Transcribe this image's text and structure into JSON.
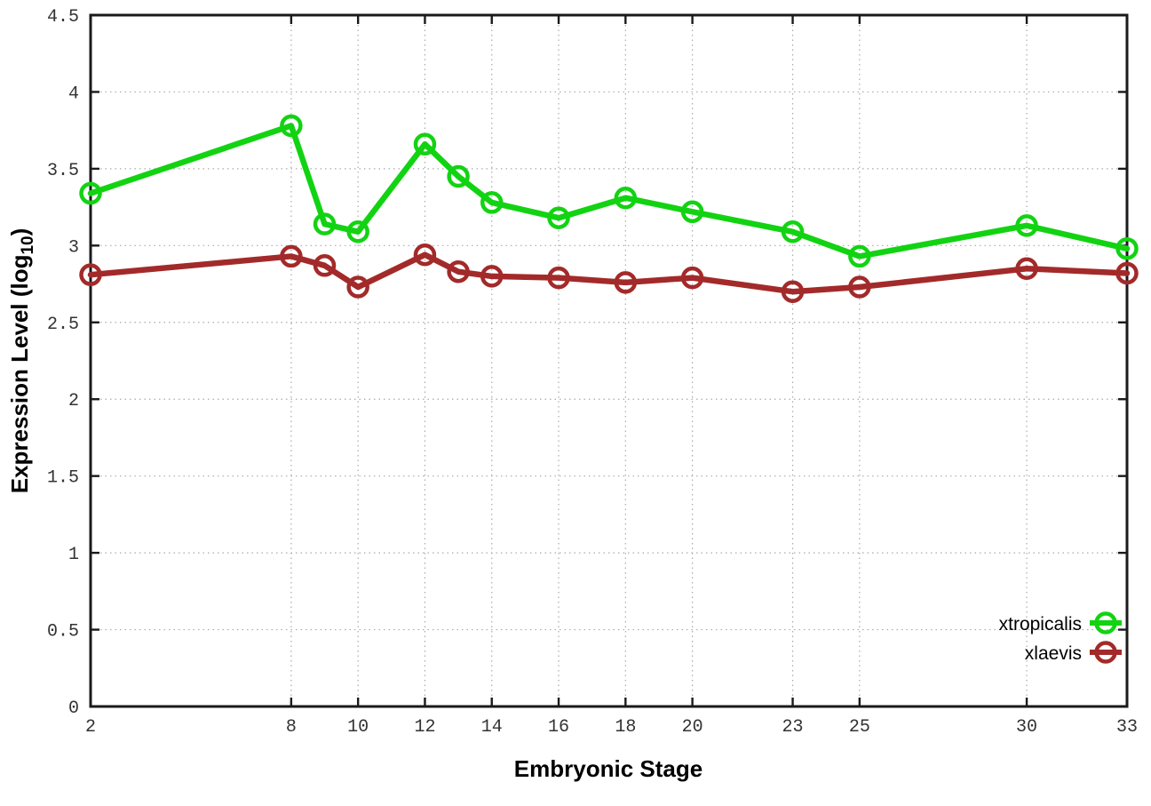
{
  "chart_data": {
    "type": "line",
    "title": "",
    "xlabel": "Embryonic Stage",
    "ylabel": "Expression Level (log10)",
    "ylabel_parts": {
      "main": "Expression Level (log",
      "sub": "10",
      "end": ")"
    },
    "xlim": [
      2,
      33
    ],
    "ylim": [
      0,
      4.5
    ],
    "grid": true,
    "legend_position": "inside-bottom-right",
    "x": [
      2,
      8,
      9,
      10,
      12,
      13,
      14,
      16,
      18,
      20,
      23,
      25,
      30,
      33
    ],
    "series": [
      {
        "name": "xtropicalis",
        "color": "#12d312",
        "values": [
          3.34,
          3.78,
          3.14,
          3.09,
          3.66,
          3.45,
          3.28,
          3.18,
          3.31,
          3.22,
          3.09,
          2.93,
          3.13,
          2.98
        ]
      },
      {
        "name": "xlaevis",
        "color": "#a32a2a",
        "values": [
          2.81,
          2.93,
          2.87,
          2.73,
          2.94,
          2.83,
          2.8,
          2.79,
          2.76,
          2.79,
          2.7,
          2.73,
          2.85,
          2.82
        ]
      }
    ],
    "xticks": {
      "values": [
        2,
        8,
        10,
        12,
        14,
        16,
        18,
        20,
        23,
        25,
        30,
        33
      ],
      "labels": [
        "2",
        "8",
        "10",
        "12",
        "14",
        "16",
        "18",
        "20",
        "23",
        "25",
        "30",
        "33"
      ]
    },
    "yticks": {
      "values": [
        0,
        0.5,
        1,
        1.5,
        2,
        2.5,
        3,
        3.5,
        4,
        4.5
      ],
      "labels": [
        "0",
        "0.5",
        "1",
        "1.5",
        "2",
        "2.5",
        "3",
        "3.5",
        "4",
        "4.5"
      ]
    }
  },
  "styles": {
    "frame_color": "#1a1a1a",
    "grid_color": "#aaaaaa",
    "tick_color": "#1a1a1a",
    "tick_label_color": "#333333",
    "background_color": "#ffffff"
  }
}
